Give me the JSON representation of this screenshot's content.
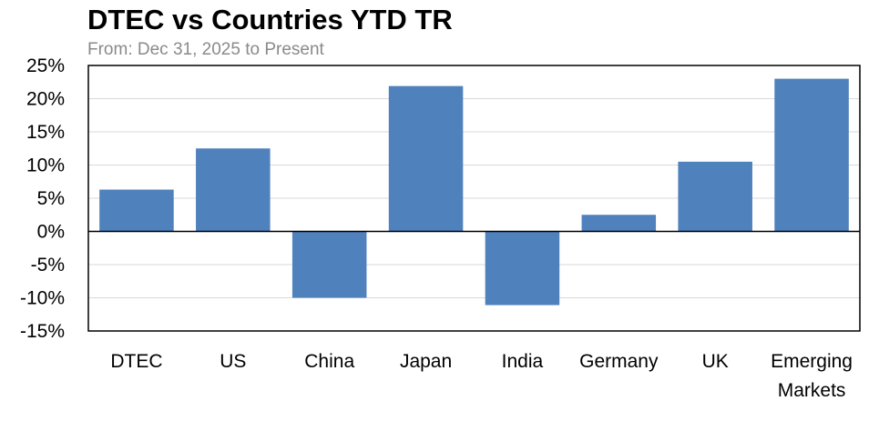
{
  "chart_data": {
    "type": "bar",
    "title": "DTEC vs Countries YTD TR",
    "subtitle": "From: Dec 31, 2025 to Present",
    "categories": [
      "DTEC",
      "US",
      "China",
      "Japan",
      "India",
      "Germany",
      "UK",
      "Emerging Markets"
    ],
    "category_lines": [
      [
        "DTEC"
      ],
      [
        "US"
      ],
      [
        "China"
      ],
      [
        "Japan"
      ],
      [
        "India"
      ],
      [
        "Germany"
      ],
      [
        "UK"
      ],
      [
        "Emerging",
        "Markets"
      ]
    ],
    "values": [
      6.3,
      12.5,
      -10.0,
      21.9,
      -11.1,
      2.5,
      10.5,
      23.0
    ],
    "ylim": [
      -15,
      25
    ],
    "yticks": [
      25,
      20,
      15,
      10,
      5,
      0,
      -5,
      -10,
      -15
    ],
    "ytick_labels": [
      "25%",
      "20%",
      "15%",
      "10%",
      "5%",
      "0%",
      "-5%",
      "-10%",
      "-15%"
    ],
    "grid": true,
    "bar_color": "#4f81bd"
  }
}
